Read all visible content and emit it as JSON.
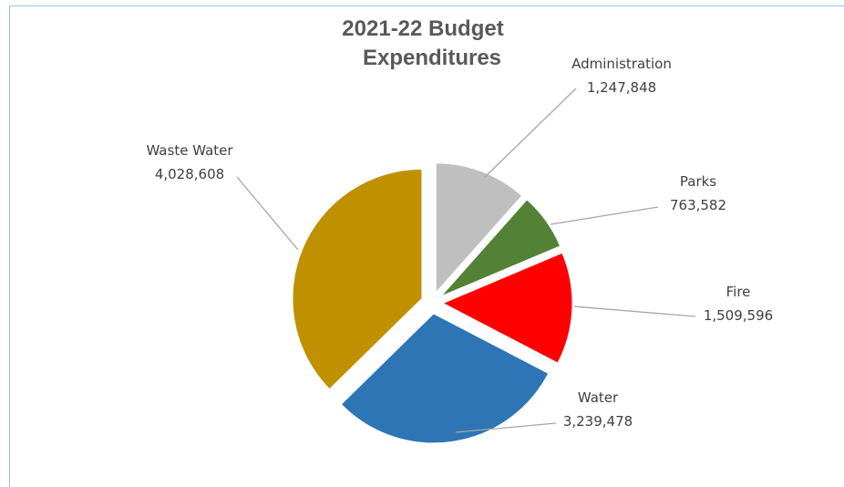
{
  "chart_data": {
    "type": "pie",
    "title_lines": [
      "2021-22  Budget",
      "Expenditures"
    ],
    "slices": [
      {
        "name": "Administration",
        "value": 1247848,
        "label_value": "1,247,848",
        "color": "#bfbfbf"
      },
      {
        "name": "Parks",
        "value": 763582,
        "label_value": "763,582",
        "color": "#538135"
      },
      {
        "name": "Fire",
        "value": 1509596,
        "label_value": "1,509,596",
        "color": "#ff0000"
      },
      {
        "name": "Water",
        "value": 3239478,
        "label_value": "3,239,478",
        "color": "#2e75b6"
      },
      {
        "name": "Waste Water",
        "value": 4028608,
        "label_value": "4,028,608",
        "color": "#bf9000"
      }
    ],
    "exploded": true,
    "legend": "none"
  }
}
